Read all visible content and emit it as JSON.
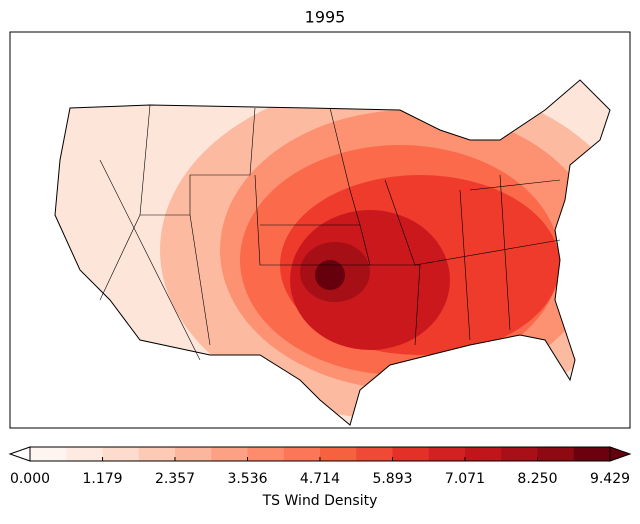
{
  "title": "1995",
  "colorbar": {
    "label": "TS Wind Density",
    "lim": [
      0,
      9.429
    ],
    "ticks": [
      {
        "value": 0,
        "label": "0.000"
      },
      1.179,
      2.357,
      3.536,
      4.714,
      5.893,
      7.071,
      {
        "value": 8.25,
        "label": "8.250"
      },
      9.429
    ],
    "colors": [
      "#fff5f0",
      "#feeae1",
      "#fedccd",
      "#fdcab5",
      "#fcb69b",
      "#fca183",
      "#fc8c6b",
      "#fb7757",
      "#f6623f",
      "#ef4a35",
      "#e33128",
      "#d32020",
      "#c0161b",
      "#a90f16",
      "#8e0a12",
      "#6b010e"
    ],
    "under_color": "#ffffff",
    "over_color": "#67000d"
  }
}
